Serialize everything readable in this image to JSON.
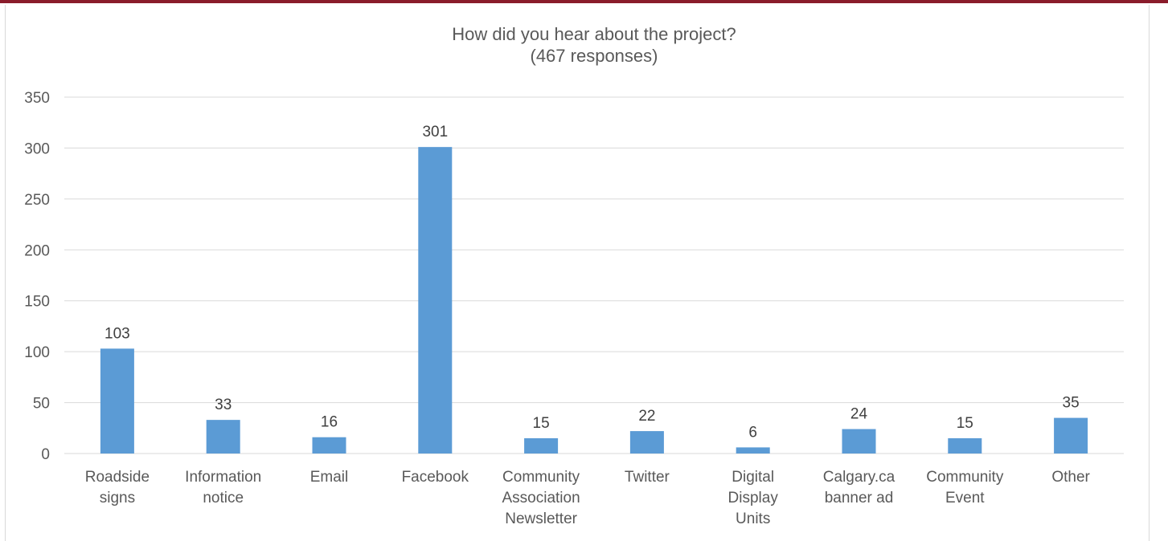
{
  "chart_data": {
    "type": "bar",
    "title_lines": [
      "How did you hear about the project?",
      "(467 responses)"
    ],
    "categories": [
      [
        "Roadside",
        "signs"
      ],
      [
        "Information",
        "notice"
      ],
      [
        "Email"
      ],
      [
        "Facebook"
      ],
      [
        "Community",
        "Association",
        "Newsletter"
      ],
      [
        "Twitter"
      ],
      [
        "Digital",
        "Display",
        "Units"
      ],
      [
        "Calgary.ca",
        "banner ad"
      ],
      [
        "Community",
        "Event"
      ],
      [
        "Other"
      ]
    ],
    "values": [
      103,
      33,
      16,
      301,
      15,
      22,
      6,
      24,
      15,
      35
    ],
    "data_labels": [
      "103",
      "33",
      "16",
      "301",
      "15",
      "22",
      "6",
      "24",
      "15",
      "35"
    ],
    "yticks": [
      0,
      50,
      100,
      150,
      200,
      250,
      300,
      350
    ],
    "ylim": [
      0,
      350
    ],
    "grid": true,
    "legend": "none",
    "colors": {
      "bar": "#5b9bd5",
      "accent": "#8a1c2b"
    }
  }
}
